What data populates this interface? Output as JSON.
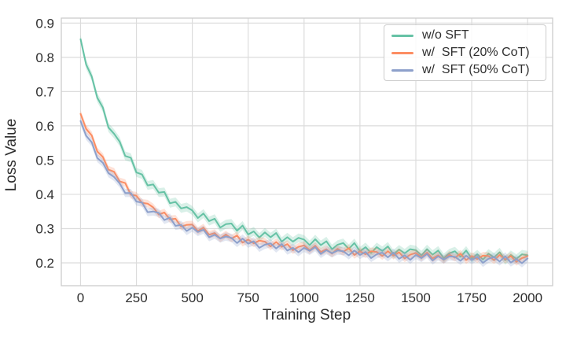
{
  "chart_data": {
    "type": "line",
    "title": "",
    "xlabel": "Training Step",
    "ylabel": "Loss Value",
    "xlim": [
      -86,
      2112
    ],
    "ylim": [
      0.1334,
      0.9145
    ],
    "xticks": [
      0,
      250,
      500,
      750,
      1000,
      1250,
      1500,
      1750,
      2000
    ],
    "yticks": [
      0.2,
      0.3,
      0.4,
      0.5,
      0.6,
      0.7,
      0.8,
      0.9
    ],
    "grid": true,
    "legend_position": "upper right",
    "x": [
      0,
      25,
      50,
      75,
      100,
      125,
      150,
      175,
      200,
      225,
      250,
      275,
      300,
      325,
      350,
      375,
      400,
      425,
      450,
      475,
      500,
      525,
      550,
      575,
      600,
      625,
      650,
      675,
      700,
      725,
      750,
      775,
      800,
      825,
      850,
      875,
      900,
      925,
      950,
      975,
      1000,
      1025,
      1050,
      1075,
      1100,
      1125,
      1150,
      1175,
      1200,
      1225,
      1250,
      1275,
      1300,
      1325,
      1350,
      1375,
      1400,
      1425,
      1450,
      1475,
      1500,
      1525,
      1550,
      1575,
      1600,
      1625,
      1650,
      1675,
      1700,
      1725,
      1750,
      1775,
      1800,
      1825,
      1850,
      1875,
      1900,
      1925,
      1950,
      1975,
      2000
    ],
    "series": [
      {
        "name": "w/o SFT",
        "color": "#66c2a5",
        "band": 0.013,
        "y": [
          0.853,
          0.779,
          0.744,
          0.682,
          0.653,
          0.595,
          0.577,
          0.554,
          0.512,
          0.507,
          0.464,
          0.458,
          0.426,
          0.429,
          0.405,
          0.407,
          0.374,
          0.378,
          0.359,
          0.363,
          0.353,
          0.331,
          0.344,
          0.322,
          0.329,
          0.303,
          0.313,
          0.315,
          0.294,
          0.309,
          0.283,
          0.292,
          0.274,
          0.289,
          0.275,
          0.287,
          0.262,
          0.275,
          0.262,
          0.273,
          0.268,
          0.252,
          0.269,
          0.252,
          0.263,
          0.24,
          0.253,
          0.258,
          0.241,
          0.258,
          0.234,
          0.246,
          0.229,
          0.246,
          0.235,
          0.248,
          0.225,
          0.239,
          0.228,
          0.24,
          0.237,
          0.222,
          0.24,
          0.224,
          0.236,
          0.214,
          0.228,
          0.234,
          0.218,
          0.236,
          0.213,
          0.225,
          0.21,
          0.227,
          0.216,
          0.231,
          0.208,
          0.223,
          0.212,
          0.225,
          0.222
        ]
      },
      {
        "name": "w/  SFT (20% CoT)",
        "color": "#fc8d62",
        "band": 0.011,
        "y": [
          0.635,
          0.591,
          0.572,
          0.525,
          0.509,
          0.472,
          0.466,
          0.438,
          0.433,
          0.399,
          0.396,
          0.375,
          0.373,
          0.362,
          0.341,
          0.347,
          0.327,
          0.329,
          0.306,
          0.311,
          0.312,
          0.293,
          0.303,
          0.282,
          0.287,
          0.271,
          0.283,
          0.271,
          0.28,
          0.259,
          0.268,
          0.257,
          0.265,
          0.262,
          0.248,
          0.261,
          0.247,
          0.255,
          0.237,
          0.247,
          0.251,
          0.237,
          0.25,
          0.232,
          0.24,
          0.227,
          0.241,
          0.232,
          0.243,
          0.223,
          0.234,
          0.225,
          0.234,
          0.232,
          0.22,
          0.234,
          0.221,
          0.231,
          0.213,
          0.224,
          0.229,
          0.216,
          0.23,
          0.213,
          0.222,
          0.209,
          0.224,
          0.215,
          0.227,
          0.208,
          0.22,
          0.211,
          0.221,
          0.22,
          0.208,
          0.223,
          0.21,
          0.22,
          0.203,
          0.214,
          0.22
        ]
      },
      {
        "name": "w/  SFT (50% CoT)",
        "color": "#8da0cb",
        "band": 0.012,
        "y": [
          0.614,
          0.571,
          0.552,
          0.506,
          0.492,
          0.462,
          0.451,
          0.432,
          0.404,
          0.404,
          0.379,
          0.376,
          0.348,
          0.35,
          0.346,
          0.325,
          0.332,
          0.308,
          0.311,
          0.293,
          0.303,
          0.29,
          0.297,
          0.275,
          0.282,
          0.271,
          0.277,
          0.273,
          0.258,
          0.271,
          0.256,
          0.263,
          0.244,
          0.253,
          0.257,
          0.242,
          0.255,
          0.236,
          0.244,
          0.231,
          0.244,
          0.235,
          0.246,
          0.226,
          0.237,
          0.228,
          0.236,
          0.234,
          0.222,
          0.236,
          0.223,
          0.232,
          0.214,
          0.225,
          0.23,
          0.216,
          0.23,
          0.212,
          0.222,
          0.209,
          0.223,
          0.214,
          0.226,
          0.207,
          0.219,
          0.21,
          0.219,
          0.218,
          0.206,
          0.221,
          0.208,
          0.218,
          0.2,
          0.212,
          0.217,
          0.204,
          0.219,
          0.201,
          0.211,
          0.199,
          0.213
        ]
      }
    ],
    "style": {
      "background": "#ffffff",
      "grid_color": "#dcdcdc",
      "spine_color": "#cccccc",
      "text_color": "#2e2e2e",
      "band_opacity": 0.25
    }
  }
}
